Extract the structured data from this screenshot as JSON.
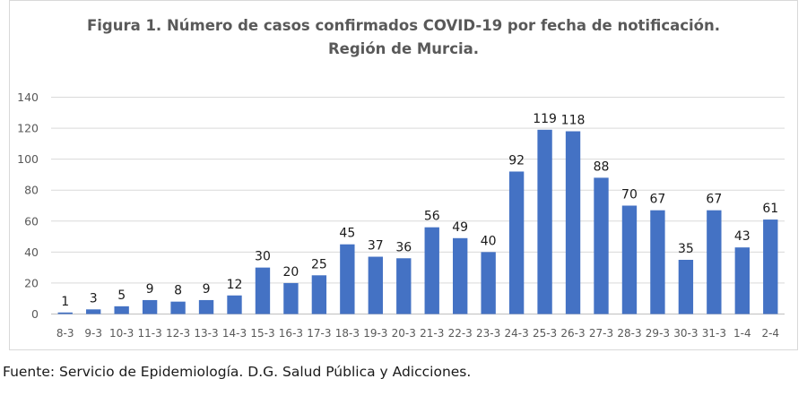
{
  "chart_data": {
    "type": "bar",
    "title": "Figura 1. Número de casos confirmados COVID-19 por fecha de notificación.",
    "subtitle": "Región de Murcia.",
    "xlabel": "",
    "ylabel": "",
    "ylim": [
      0,
      140
    ],
    "yticks": [
      "0",
      "20",
      "40",
      "60",
      "80",
      "100",
      "120",
      "140"
    ],
    "grid": true,
    "legend": "none",
    "bar_color": "#4472c4",
    "categories": [
      "8-3",
      "9-3",
      "10-3",
      "11-3",
      "12-3",
      "13-3",
      "14-3",
      "15-3",
      "16-3",
      "17-3",
      "18-3",
      "19-3",
      "20-3",
      "21-3",
      "22-3",
      "23-3",
      "24-3",
      "25-3",
      "26-3",
      "27-3",
      "28-3",
      "29-3",
      "30-3",
      "31-3",
      "1-4",
      "2-4"
    ],
    "values": [
      1,
      3,
      5,
      9,
      8,
      9,
      12,
      30,
      20,
      25,
      45,
      37,
      36,
      56,
      49,
      40,
      92,
      119,
      118,
      88,
      70,
      67,
      35,
      67,
      43,
      61
    ]
  },
  "footer": {
    "source": "Fuente: Servicio de Epidemiología. D.G. Salud Pública y Adicciones."
  }
}
